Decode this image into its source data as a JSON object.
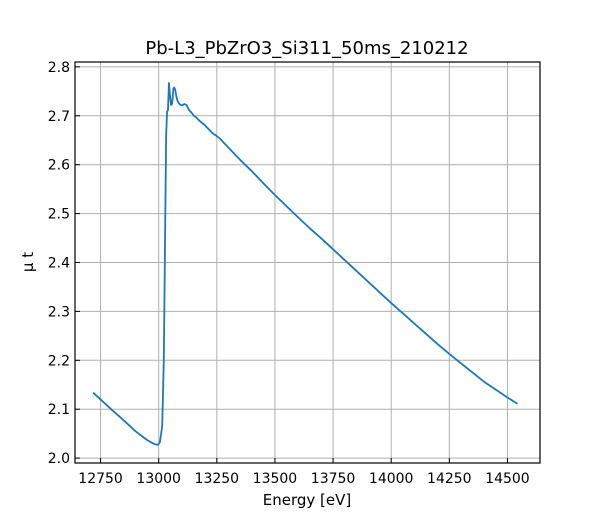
{
  "chart_data": {
    "type": "line",
    "title": "Pb-L3_PbZrO3_Si311_50ms_210212",
    "xlabel": "Energy [eV]",
    "ylabel": "μ t",
    "xlim": [
      12640,
      14640
    ],
    "ylim": [
      1.99,
      2.81
    ],
    "grid": true,
    "legend": "none",
    "x_ticks": [
      12750,
      13000,
      13250,
      13500,
      13750,
      14000,
      14250,
      14500
    ],
    "y_ticks": [
      2.0,
      2.1,
      2.2,
      2.3,
      2.4,
      2.5,
      2.6,
      2.7,
      2.8
    ],
    "x_tick_labels": [
      "12750",
      "13000",
      "13250",
      "13500",
      "13750",
      "14000",
      "14250",
      "14500"
    ],
    "y_tick_labels": [
      "2.0",
      "2.1",
      "2.2",
      "2.3",
      "2.4",
      "2.5",
      "2.6",
      "2.7",
      "2.8"
    ],
    "series": [
      {
        "color": "#1f77b4",
        "x": [
          12720,
          12750,
          12800,
          12850,
          12900,
          12950,
          12980,
          12995,
          13005,
          13015,
          13022,
          13027,
          13032,
          13036,
          13040,
          13044,
          13048,
          13053,
          13058,
          13063,
          13067,
          13071,
          13075,
          13080,
          13086,
          13092,
          13100,
          13110,
          13120,
          13130,
          13140,
          13150,
          13160,
          13175,
          13200,
          13230,
          13260,
          13300,
          13350,
          13400,
          13450,
          13500,
          13550,
          13600,
          13650,
          13700,
          13750,
          13800,
          13850,
          13900,
          13950,
          14000,
          14050,
          14100,
          14150,
          14200,
          14250,
          14300,
          14350,
          14400,
          14450,
          14500,
          14540
        ],
        "y": [
          2.133,
          2.12,
          2.098,
          2.077,
          2.055,
          2.037,
          2.029,
          2.027,
          2.032,
          2.065,
          2.2,
          2.43,
          2.66,
          2.708,
          2.712,
          2.767,
          2.745,
          2.722,
          2.725,
          2.755,
          2.758,
          2.753,
          2.742,
          2.732,
          2.726,
          2.723,
          2.721,
          2.724,
          2.722,
          2.712,
          2.707,
          2.701,
          2.697,
          2.69,
          2.68,
          2.665,
          2.655,
          2.635,
          2.61,
          2.587,
          2.562,
          2.538,
          2.515,
          2.492,
          2.47,
          2.449,
          2.427,
          2.405,
          2.383,
          2.361,
          2.339,
          2.317,
          2.296,
          2.275,
          2.254,
          2.233,
          2.213,
          2.194,
          2.175,
          2.156,
          2.14,
          2.124,
          2.112
        ]
      }
    ]
  }
}
